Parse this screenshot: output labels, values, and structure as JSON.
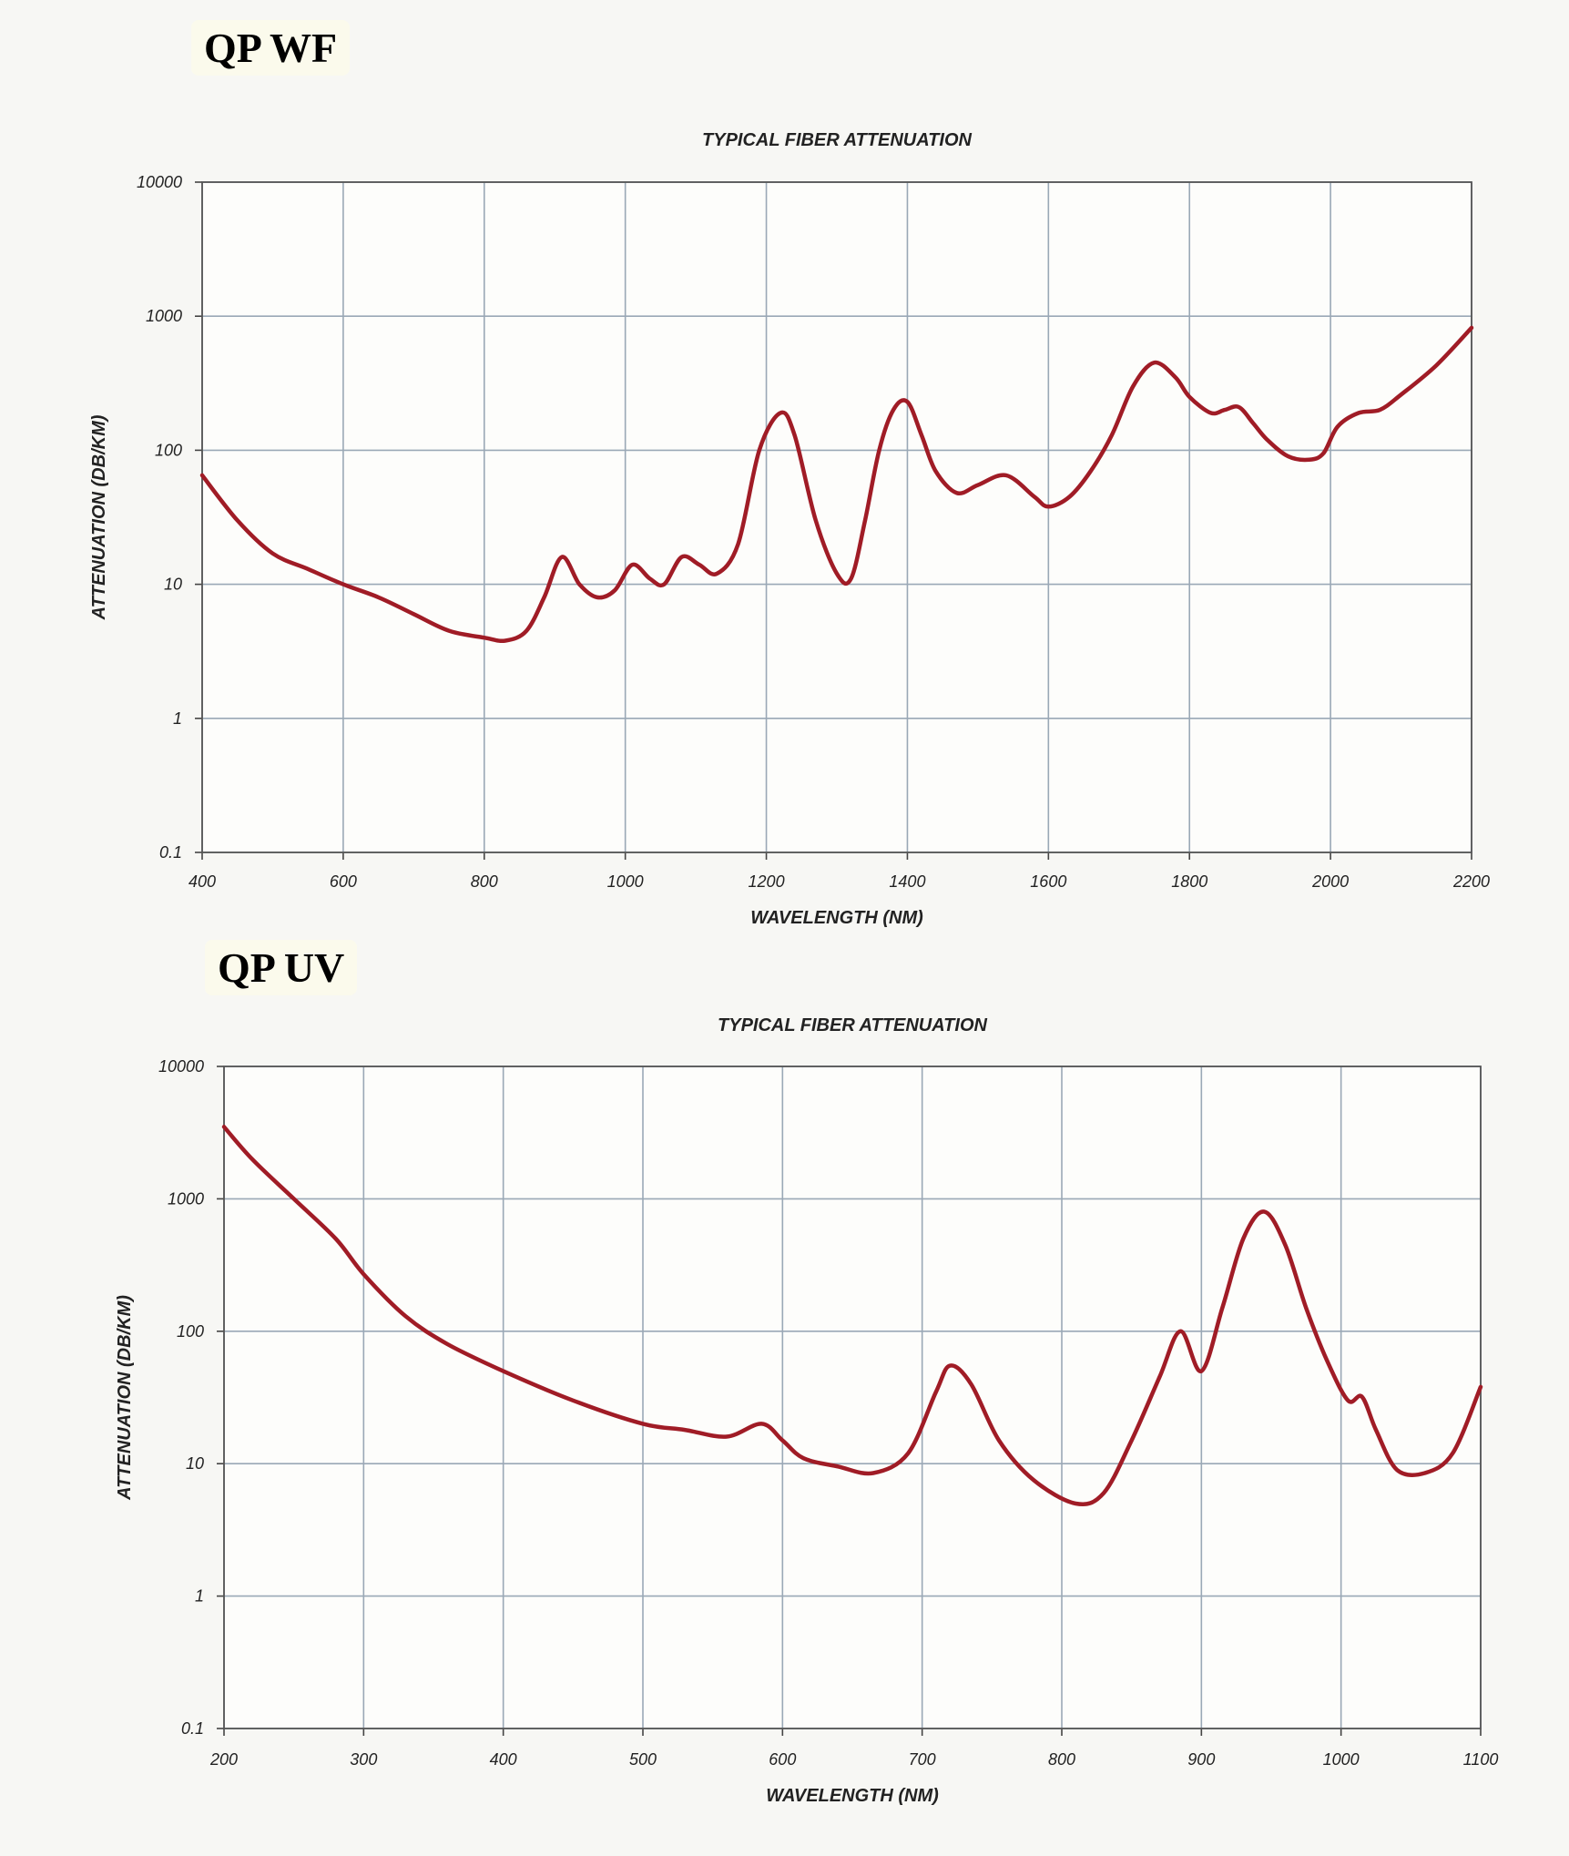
{
  "headings": {
    "top": "QP WF",
    "bottom": "QP UV"
  },
  "chart_data": [
    {
      "type": "line",
      "title": "TYPICAL FIBER ATTENUATION",
      "xlabel": "WAVELENGTH (NM)",
      "ylabel": "ATTENUATION (DB/KM)",
      "xlim": [
        400,
        2200
      ],
      "ylim": [
        0.1,
        10000
      ],
      "yscale": "log",
      "grid": true,
      "color": "#a01c26",
      "x_ticks": [
        "400",
        "600",
        "800",
        "1000",
        "1200",
        "1400",
        "1600",
        "1800",
        "2000",
        "2200"
      ],
      "y_ticks": [
        "0.1",
        "1",
        "10",
        "100",
        "1000",
        "10000"
      ],
      "series": [
        {
          "x": [
            400,
            450,
            500,
            550,
            600,
            650,
            700,
            750,
            800,
            830,
            860,
            885,
            910,
            935,
            960,
            985,
            1010,
            1035,
            1055,
            1080,
            1105,
            1130,
            1160,
            1190,
            1220,
            1240,
            1270,
            1300,
            1320,
            1340,
            1360,
            1380,
            1400,
            1420,
            1440,
            1470,
            1500,
            1540,
            1580,
            1600,
            1630,
            1660,
            1690,
            1720,
            1750,
            1780,
            1800,
            1830,
            1850,
            1870,
            1890,
            1910,
            1940,
            1970,
            1990,
            2010,
            2040,
            2070,
            2100,
            2150,
            2200
          ],
          "values": [
            65,
            30,
            17,
            13,
            10,
            8,
            6,
            4.5,
            4,
            3.8,
            4.5,
            8,
            16,
            10,
            8,
            9,
            14,
            11,
            10,
            16,
            14,
            12,
            20,
            100,
            190,
            130,
            30,
            12,
            11,
            30,
            100,
            200,
            230,
            130,
            70,
            48,
            55,
            65,
            45,
            38,
            45,
            70,
            130,
            300,
            450,
            350,
            250,
            190,
            200,
            210,
            160,
            120,
            90,
            85,
            95,
            150,
            190,
            200,
            260,
            430,
            820
          ]
        }
      ]
    },
    {
      "type": "line",
      "title": "TYPICAL FIBER ATTENUATION",
      "xlabel": "WAVELENGTH (NM)",
      "ylabel": "ATTENUATION (DB/KM)",
      "xlim": [
        200,
        1100
      ],
      "ylim": [
        0.1,
        10000
      ],
      "yscale": "log",
      "grid": true,
      "color": "#a01c26",
      "x_ticks": [
        "200",
        "300",
        "400",
        "500",
        "600",
        "700",
        "800",
        "900",
        "1000",
        "1100"
      ],
      "y_ticks": [
        "0.1",
        "1",
        "10",
        "100",
        "1000",
        "10000"
      ],
      "series": [
        {
          "x": [
            200,
            220,
            250,
            280,
            300,
            330,
            360,
            400,
            450,
            500,
            530,
            560,
            585,
            600,
            615,
            640,
            665,
            690,
            710,
            720,
            735,
            755,
            780,
            810,
            830,
            850,
            870,
            885,
            900,
            915,
            930,
            945,
            960,
            975,
            990,
            1005,
            1015,
            1025,
            1040,
            1060,
            1080,
            1100
          ],
          "values": [
            3500,
            2000,
            1000,
            500,
            270,
            130,
            80,
            50,
            30,
            20,
            18,
            16,
            20,
            15,
            11,
            9.5,
            8.5,
            12,
            35,
            55,
            40,
            15,
            7.5,
            5,
            6,
            15,
            45,
            100,
            50,
            150,
            500,
            800,
            450,
            150,
            60,
            30,
            32,
            18,
            9,
            8.5,
            12,
            38
          ]
        }
      ]
    }
  ]
}
